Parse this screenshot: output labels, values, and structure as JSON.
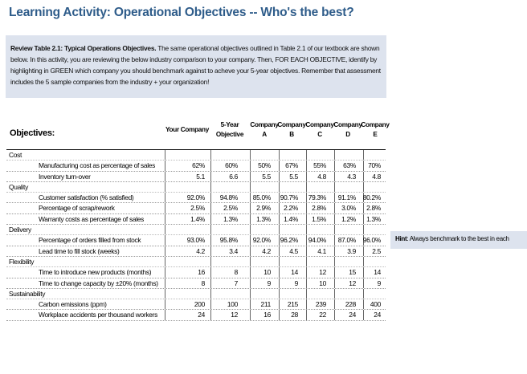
{
  "title": "Learning Activity:  Operational Objectives -- Who's the best?",
  "review": {
    "bold": "Review Table 2.1: Typical Operations Objectives.",
    "text": " The same operational objectives outlined in Table 2.1 of our textbook are shown below.  In this activity, you are reviewing the below industry comparison to your company.  Then, FOR EACH OBJECTIVE, identify by highlighting in GREEN which company you should benchmark against to acheve your 5-year objectives.  Remember that assessment includes the 5 sample companies from the industry + your organization!"
  },
  "table": {
    "objectives_label": "Objectives:",
    "columns": [
      {
        "line1": "",
        "line2": "Your Company"
      },
      {
        "line1": "5-Year",
        "line2": "Objective"
      },
      {
        "line1": "Company",
        "line2": "A"
      },
      {
        "line1": "Company",
        "line2": "B"
      },
      {
        "line1": "Company",
        "line2": "C"
      },
      {
        "line1": "Company",
        "line2": "D"
      },
      {
        "line1": "Company",
        "line2": "E"
      }
    ],
    "categories": [
      {
        "name": "Cost",
        "items": [
          {
            "label": "Manufacturing cost as percentage of sales",
            "values": [
              "62%",
              "60%",
              "50%",
              "67%",
              "55%",
              "63%",
              "70%"
            ]
          },
          {
            "label": "Inventory turn-over",
            "values": [
              "5.1",
              "6.6",
              "5.5",
              "5.5",
              "4.8",
              "4.3",
              "4.8"
            ]
          }
        ]
      },
      {
        "name": "Quality",
        "items": [
          {
            "label": "Customer satisfaction (% satisfied)",
            "values": [
              "92.0%",
              "94.8%",
              "85.0%",
              "90.7%",
              "79.3%",
              "91.1%",
              "80.2%"
            ]
          },
          {
            "label": "Percentage of scrap/rework",
            "values": [
              "2.5%",
              "2.5%",
              "2.9%",
              "2.2%",
              "2.8%",
              "3.0%",
              "2.8%"
            ]
          },
          {
            "label": "Warranty costs as percentage of sales",
            "values": [
              "1.4%",
              "1.3%",
              "1.3%",
              "1.4%",
              "1.5%",
              "1.2%",
              "1.3%"
            ]
          }
        ]
      },
      {
        "name": "Delivery",
        "items": [
          {
            "label": "Percentage of orders filled from stock",
            "values": [
              "93.0%",
              "95.8%",
              "92.0%",
              "96.2%",
              "94.0%",
              "87.0%",
              "96.0%"
            ]
          },
          {
            "label": "Lead time to fill stock (weeks)",
            "values": [
              "4.2",
              "3.4",
              "4.2",
              "4.5",
              "4.1",
              "3.9",
              "2.5"
            ]
          }
        ]
      },
      {
        "name": "Flexibility",
        "items": [
          {
            "label": "Time to introduce new products  (months)",
            "values": [
              "16",
              "8",
              "10",
              "14",
              "12",
              "15",
              "14"
            ]
          },
          {
            "label": "Time to change capacity by ±20% (months)",
            "values": [
              "8",
              "7",
              "9",
              "9",
              "10",
              "12",
              "9"
            ]
          }
        ]
      },
      {
        "name": "Sustainability",
        "items": [
          {
            "label": "Carbon emissions (ppm)",
            "values": [
              "200",
              "100",
              "211",
              "215",
              "239",
              "228",
              "400"
            ]
          },
          {
            "label": "Workplace accidents per thousand workers",
            "values": [
              "24",
              "12",
              "16",
              "28",
              "22",
              "24",
              "24"
            ]
          }
        ]
      }
    ]
  },
  "hint": {
    "bold": "Hint",
    "text": ":  Always benchmark to the best in each"
  }
}
